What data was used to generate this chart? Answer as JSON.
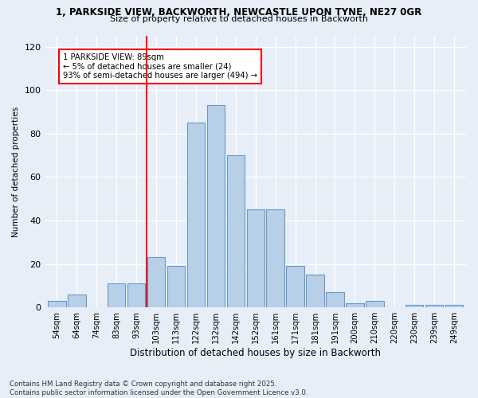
{
  "title_line1": "1, PARKSIDE VIEW, BACKWORTH, NEWCASTLE UPON TYNE, NE27 0GR",
  "title_line2": "Size of property relative to detached houses in Backworth",
  "xlabel": "Distribution of detached houses by size in Backworth",
  "ylabel": "Number of detached properties",
  "bar_labels": [
    "54sqm",
    "64sqm",
    "74sqm",
    "83sqm",
    "93sqm",
    "103sqm",
    "113sqm",
    "122sqm",
    "132sqm",
    "142sqm",
    "152sqm",
    "161sqm",
    "171sqm",
    "181sqm",
    "191sqm",
    "200sqm",
    "210sqm",
    "220sqm",
    "230sqm",
    "239sqm",
    "249sqm"
  ],
  "bar_values": [
    3,
    6,
    0,
    11,
    11,
    23,
    19,
    85,
    93,
    70,
    45,
    45,
    19,
    15,
    7,
    2,
    3,
    0,
    1,
    1,
    1
  ],
  "bar_color": "#b8cfe8",
  "bar_edge_color": "#6699cc",
  "annotation_text": "1 PARKSIDE VIEW: 89sqm\n← 5% of detached houses are smaller (24)\n93% of semi-detached houses are larger (494) →",
  "annotation_box_color": "white",
  "annotation_box_edge_color": "red",
  "vline_x_index": 4.5,
  "ylim": [
    0,
    125
  ],
  "yticks": [
    0,
    20,
    40,
    60,
    80,
    100,
    120
  ],
  "footer_line1": "Contains HM Land Registry data © Crown copyright and database right 2025.",
  "footer_line2": "Contains public sector information licensed under the Open Government Licence v3.0.",
  "bg_color": "#e8eef8"
}
